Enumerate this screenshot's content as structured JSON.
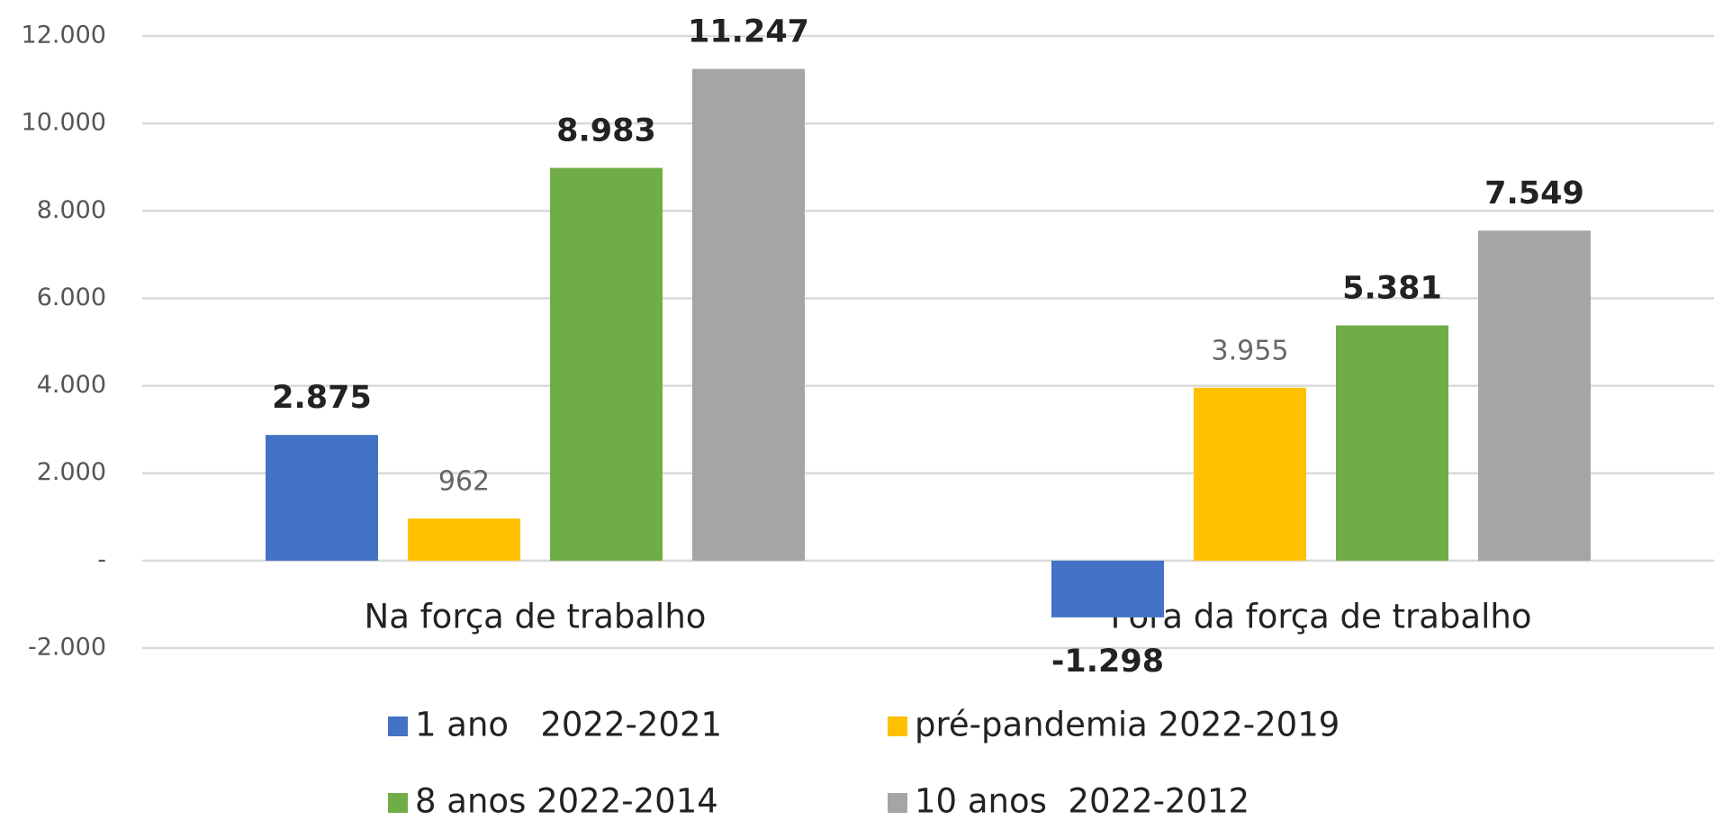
{
  "chart_data": {
    "type": "bar",
    "categories": [
      "Na força de trabalho",
      "Fora da força de trabalho"
    ],
    "series": [
      {
        "name": "1 ano   2022-2021",
        "color": "#4472c4",
        "values": [
          2875,
          -1298
        ],
        "value_labels": [
          "2.875",
          "-1.298"
        ]
      },
      {
        "name": "pré-pandemia 2022-2019",
        "color": "#ffc000",
        "values": [
          962,
          3955
        ],
        "value_labels": [
          "962",
          "3.955"
        ]
      },
      {
        "name": "8 anos 2022-2014",
        "color": "#70ad47",
        "values": [
          8983,
          5381
        ],
        "value_labels": [
          "8.983",
          "5.381"
        ]
      },
      {
        "name": "10 anos  2022-2012",
        "color": "#a5a5a5",
        "values": [
          11247,
          7549
        ],
        "value_labels": [
          "11.247",
          "7.549"
        ]
      }
    ],
    "ylim": [
      -2000,
      12000
    ],
    "yticks": [
      {
        "value": -2000,
        "label": "-2.000"
      },
      {
        "value": 0,
        "label": "-"
      },
      {
        "value": 2000,
        "label": "2.000"
      },
      {
        "value": 4000,
        "label": "4.000"
      },
      {
        "value": 6000,
        "label": "6.000"
      },
      {
        "value": 8000,
        "label": "8.000"
      },
      {
        "value": 10000,
        "label": "10.000"
      },
      {
        "value": 12000,
        "label": "12.000"
      }
    ],
    "grid": true,
    "legend": "bottom"
  }
}
